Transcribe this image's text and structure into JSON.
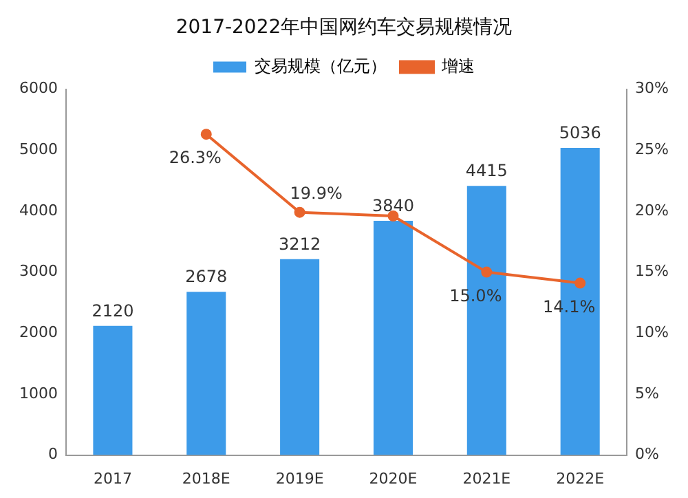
{
  "chart_data": {
    "type": "bar",
    "title": "2017-2022年中国网约车交易规模情况",
    "categories": [
      "2017",
      "2018E",
      "2019E",
      "2020E",
      "2021E",
      "2022E"
    ],
    "series": [
      {
        "name": "交易规模（亿元）",
        "color": "#3d9be9",
        "values": [
          2120,
          2678,
          3212,
          3840,
          4415,
          5036
        ],
        "value_labels": [
          "2120",
          "2678",
          "3212",
          "3840",
          "4415",
          "5036"
        ]
      },
      {
        "name": "增速",
        "type": "line",
        "axis": "y2",
        "color": "#e8642c",
        "marker": "circle",
        "values": [
          null,
          26.3,
          19.9,
          19.6,
          15.0,
          14.1
        ],
        "value_labels": [
          null,
          "26.3%",
          "19.9%",
          null,
          "15.0%",
          "14.1%"
        ]
      }
    ],
    "ylim": [
      0,
      6000
    ],
    "yticks": [
      0,
      1000,
      2000,
      3000,
      4000,
      5000,
      6000
    ],
    "y2lim": [
      0,
      30
    ],
    "y2ticks": [
      {
        "value": 0,
        "label": "0%"
      },
      {
        "value": 5,
        "label": "5%"
      },
      {
        "value": 10,
        "label": "10%"
      },
      {
        "value": 15,
        "label": "15%"
      },
      {
        "value": 20,
        "label": "20%"
      },
      {
        "value": 25,
        "label": "25%"
      },
      {
        "value": 30,
        "label": "30%"
      }
    ],
    "grid": false,
    "legend": "top"
  }
}
